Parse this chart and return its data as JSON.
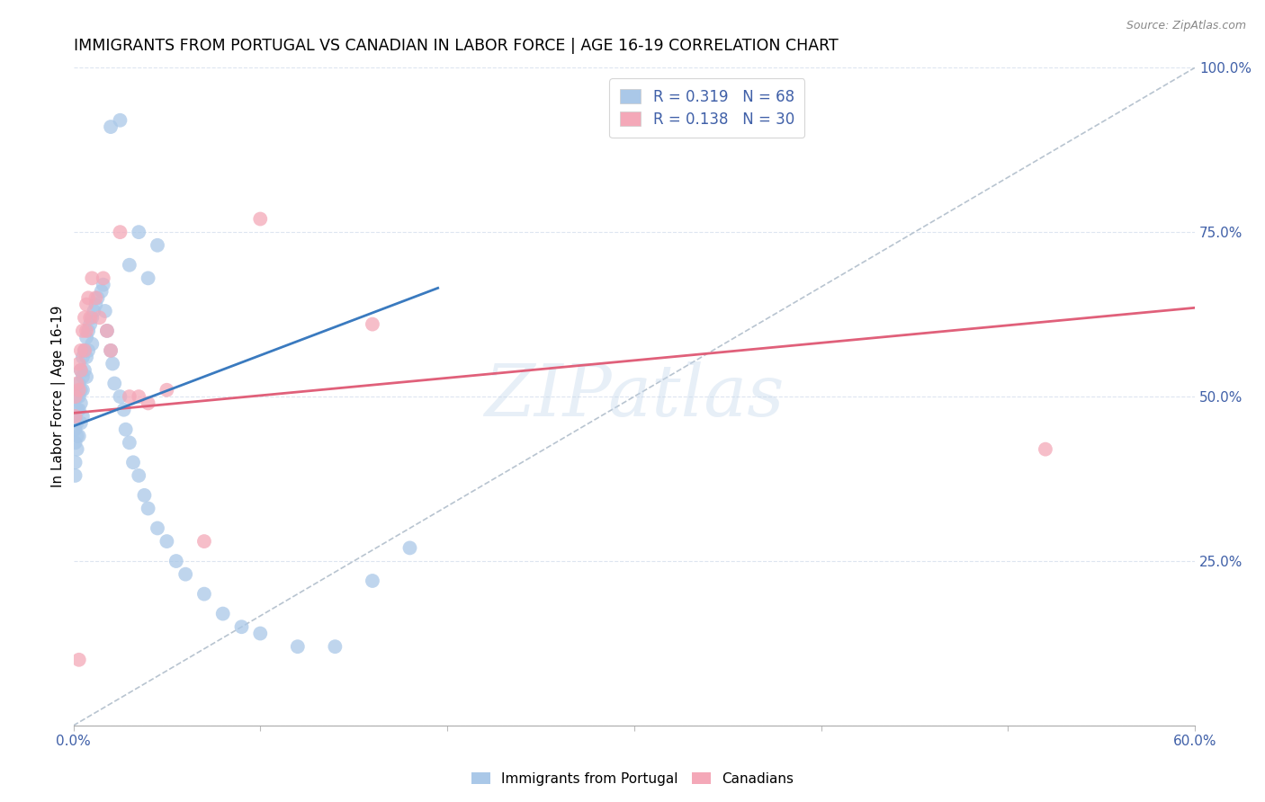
{
  "title": "IMMIGRANTS FROM PORTUGAL VS CANADIAN IN LABOR FORCE | AGE 16-19 CORRELATION CHART",
  "source": "Source: ZipAtlas.com",
  "ylabel": "In Labor Force | Age 16-19",
  "xlim": [
    0.0,
    0.6
  ],
  "ylim": [
    0.0,
    1.0
  ],
  "xticks": [
    0.0,
    0.1,
    0.2,
    0.3,
    0.4,
    0.5,
    0.6
  ],
  "xticklabels": [
    "0.0%",
    "",
    "",
    "",
    "",
    "",
    "60.0%"
  ],
  "yticks_right": [
    0.0,
    0.25,
    0.5,
    0.75,
    1.0
  ],
  "yticklabels_right": [
    "",
    "25.0%",
    "50.0%",
    "75.0%",
    "100.0%"
  ],
  "watermark": "ZIPatlas",
  "legend_entries": [
    {
      "label": "R = 0.319   N = 68",
      "color": "#6baed6"
    },
    {
      "label": "R = 0.138   N = 30",
      "color": "#f4a0b0"
    }
  ],
  "blue_scatter_x": [
    0.001,
    0.001,
    0.001,
    0.001,
    0.001,
    0.002,
    0.002,
    0.002,
    0.002,
    0.002,
    0.003,
    0.003,
    0.003,
    0.003,
    0.004,
    0.004,
    0.004,
    0.004,
    0.005,
    0.005,
    0.005,
    0.005,
    0.006,
    0.006,
    0.007,
    0.007,
    0.007,
    0.008,
    0.008,
    0.009,
    0.01,
    0.01,
    0.011,
    0.012,
    0.013,
    0.015,
    0.016,
    0.017,
    0.018,
    0.02,
    0.021,
    0.022,
    0.025,
    0.027,
    0.028,
    0.03,
    0.032,
    0.035,
    0.038,
    0.04,
    0.045,
    0.05,
    0.055,
    0.06,
    0.07,
    0.08,
    0.09,
    0.1,
    0.12,
    0.14,
    0.16,
    0.18,
    0.02,
    0.025,
    0.03,
    0.035,
    0.04,
    0.045
  ],
  "blue_scatter_y": [
    0.47,
    0.45,
    0.43,
    0.4,
    0.38,
    0.5,
    0.48,
    0.46,
    0.44,
    0.42,
    0.52,
    0.5,
    0.48,
    0.44,
    0.54,
    0.51,
    0.49,
    0.46,
    0.56,
    0.53,
    0.51,
    0.47,
    0.57,
    0.54,
    0.59,
    0.56,
    0.53,
    0.6,
    0.57,
    0.61,
    0.62,
    0.58,
    0.63,
    0.64,
    0.65,
    0.66,
    0.67,
    0.63,
    0.6,
    0.57,
    0.55,
    0.52,
    0.5,
    0.48,
    0.45,
    0.43,
    0.4,
    0.38,
    0.35,
    0.33,
    0.3,
    0.28,
    0.25,
    0.23,
    0.2,
    0.17,
    0.15,
    0.14,
    0.12,
    0.12,
    0.22,
    0.27,
    0.91,
    0.92,
    0.7,
    0.75,
    0.68,
    0.73
  ],
  "pink_scatter_x": [
    0.001,
    0.001,
    0.002,
    0.003,
    0.003,
    0.004,
    0.004,
    0.005,
    0.006,
    0.006,
    0.007,
    0.007,
    0.008,
    0.009,
    0.01,
    0.012,
    0.014,
    0.016,
    0.018,
    0.02,
    0.025,
    0.03,
    0.035,
    0.04,
    0.05,
    0.07,
    0.1,
    0.16,
    0.52,
    0.003
  ],
  "pink_scatter_y": [
    0.5,
    0.47,
    0.52,
    0.55,
    0.51,
    0.57,
    0.54,
    0.6,
    0.62,
    0.57,
    0.64,
    0.6,
    0.65,
    0.62,
    0.68,
    0.65,
    0.62,
    0.68,
    0.6,
    0.57,
    0.75,
    0.5,
    0.5,
    0.49,
    0.51,
    0.28,
    0.77,
    0.61,
    0.42,
    0.1
  ],
  "blue_line_x": [
    0.0,
    0.195
  ],
  "blue_line_y": [
    0.455,
    0.665
  ],
  "pink_line_x": [
    0.0,
    0.6
  ],
  "pink_line_y": [
    0.475,
    0.635
  ],
  "dashed_line_x": [
    0.0,
    0.6
  ],
  "dashed_line_y": [
    0.0,
    1.0
  ],
  "blue_color": "#aac8e8",
  "pink_color": "#f4a8b8",
  "blue_line_color": "#3a7abf",
  "pink_line_color": "#e0607a",
  "dashed_line_color": "#b8c4d0",
  "grid_color": "#dde5f0",
  "axis_label_color": "#4060a8",
  "background_color": "#ffffff",
  "title_fontsize": 12.5,
  "label_fontsize": 11,
  "tick_fontsize": 11,
  "legend_fontsize": 12,
  "source_fontsize": 9
}
